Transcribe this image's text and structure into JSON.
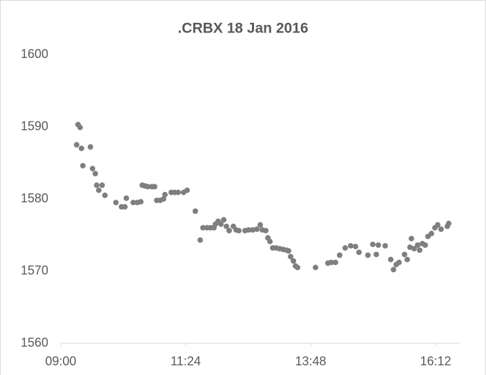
{
  "chart_data": {
    "type": "scatter",
    "title": ".CRBX 18 Jan 2016",
    "color": "#7f7f7f",
    "xlim": [
      540,
      1000
    ],
    "xticks": [
      {
        "value": 540,
        "label": "09:00"
      },
      {
        "value": 684,
        "label": "11:24"
      },
      {
        "value": 828,
        "label": "13:48"
      },
      {
        "value": 972,
        "label": "16:12"
      }
    ],
    "ylim": [
      1560,
      1600
    ],
    "yticks": [
      1560,
      1570,
      1580,
      1590,
      1600
    ],
    "grid": false,
    "x": [
      558.3,
      559.9,
      562.3,
      563.9,
      565.5,
      574.2,
      576.6,
      579.8,
      581.4,
      583.8,
      587.7,
      590.9,
      603.6,
      610.0,
      613.9,
      615.6,
      623.5,
      628.3,
      632.3,
      633.9,
      637.1,
      640.2,
      645.0,
      648.2,
      650.6,
      654.6,
      658.5,
      660.1,
      667.3,
      671.3,
      675.3,
      681.6,
      685.6,
      695.1,
      700.7,
      703.9,
      708.7,
      712.6,
      716.6,
      718.2,
      721.4,
      724.6,
      727.8,
      730.9,
      734.1,
      738.9,
      742.1,
      745.3,
      752.4,
      756.4,
      761.2,
      766.0,
      769.9,
      772.3,
      776.3,
      778.7,
      781.1,
      784.2,
      788.2,
      792.2,
      796.2,
      800.1,
      802.5,
      804.9,
      808.1,
      810.5,
      812.9,
      833.6,
      847.9,
      851.9,
      856.6,
      861.4,
      867.8,
      874.1,
      879.7,
      883.7,
      894.0,
      899.6,
      903.6,
      906.0,
      913.9,
      920.3,
      923.5,
      926.6,
      929.8,
      936.2,
      939.3,
      942.5,
      944.1,
      947.3,
      951.3,
      953.6,
      956.8,
      960.0,
      963.2,
      967.2,
      971.2,
      974.4,
      978.3,
      985.5,
      987.1
    ],
    "values": [
      1587.5,
      1590.3,
      1589.9,
      1587.0,
      1584.6,
      1587.2,
      1584.2,
      1583.5,
      1581.9,
      1581.2,
      1581.9,
      1580.5,
      1579.5,
      1578.9,
      1578.9,
      1580.1,
      1579.5,
      1579.5,
      1579.6,
      1581.9,
      1581.8,
      1581.7,
      1581.7,
      1581.7,
      1579.8,
      1579.8,
      1580.0,
      1580.6,
      1580.9,
      1580.9,
      1580.9,
      1580.9,
      1581.2,
      1578.3,
      1574.3,
      1576.0,
      1576.0,
      1576.0,
      1576.0,
      1576.5,
      1576.9,
      1576.5,
      1577.1,
      1576.2,
      1575.6,
      1576.2,
      1575.7,
      1575.6,
      1575.6,
      1575.7,
      1575.7,
      1575.8,
      1576.4,
      1575.7,
      1575.6,
      1574.6,
      1574.1,
      1573.2,
      1573.2,
      1573.1,
      1573.0,
      1572.9,
      1572.8,
      1572.0,
      1571.4,
      1570.7,
      1570.5,
      1570.5,
      1571.1,
      1571.2,
      1571.2,
      1572.2,
      1573.2,
      1573.5,
      1573.4,
      1572.6,
      1572.2,
      1573.7,
      1572.3,
      1573.6,
      1573.5,
      1571.6,
      1570.2,
      1570.9,
      1571.2,
      1572.3,
      1571.6,
      1573.3,
      1574.5,
      1573.1,
      1573.6,
      1572.9,
      1573.8,
      1573.6,
      1574.8,
      1575.2,
      1576.0,
      1576.4,
      1575.8,
      1576.2,
      1576.6
    ]
  }
}
